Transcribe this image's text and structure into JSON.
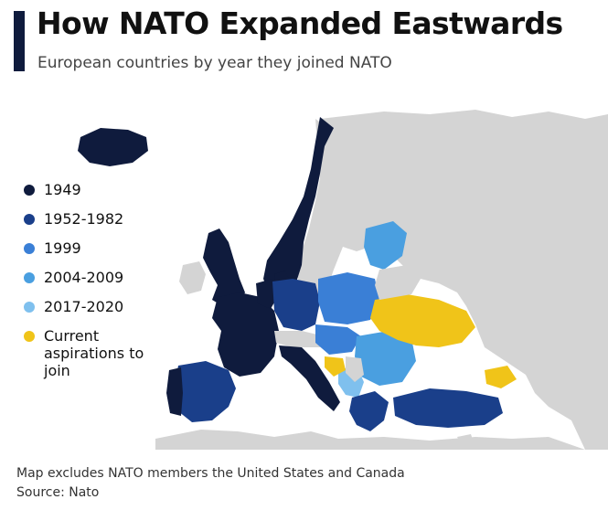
{
  "header": {
    "title": "How NATO Expanded Eastwards",
    "subtitle": "European countries by year they joined NATO"
  },
  "legend": [
    {
      "label": "1949",
      "color": "#0f1b3d"
    },
    {
      "label": "1952-1982",
      "color": "#1a3f8a"
    },
    {
      "label": "1999",
      "color": "#3a7fd6"
    },
    {
      "label": "2004-2009",
      "color": "#4a9fe0"
    },
    {
      "label": "2017-2020",
      "color": "#7fc0ee"
    },
    {
      "label": "Current aspirations to join",
      "color": "#f0c419"
    }
  ],
  "map": {
    "non_member_color": "#d4d4d4",
    "sea_color": "#ffffff"
  },
  "footer": {
    "note": "Map excludes NATO members the United States and Canada",
    "source": "Source: Nato"
  }
}
